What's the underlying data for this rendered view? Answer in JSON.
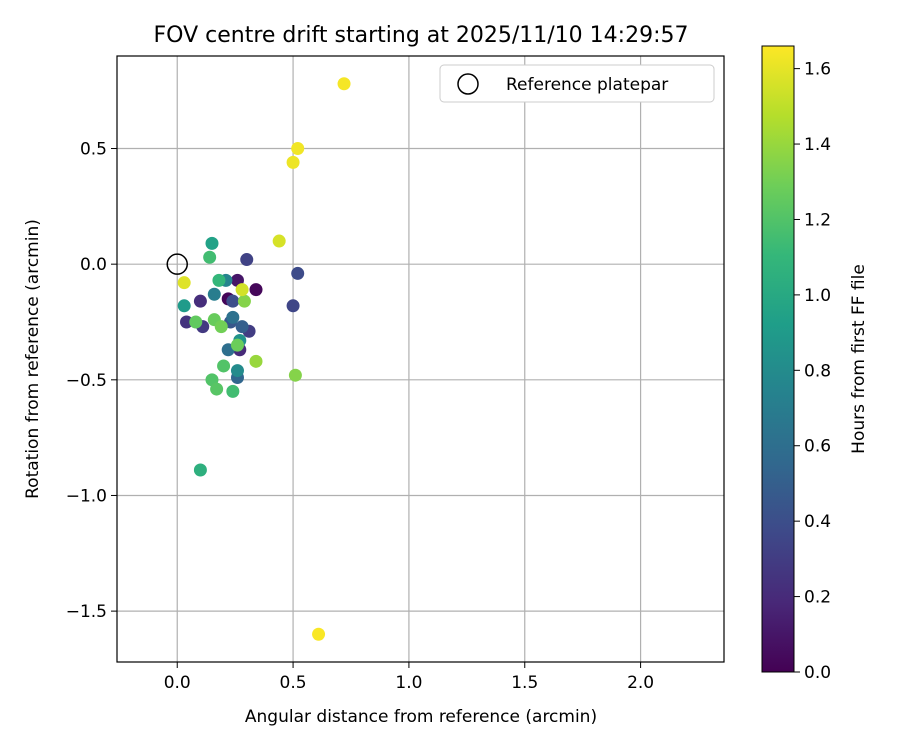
{
  "chart_data": {
    "type": "scatter",
    "title": "FOV centre drift starting at 2025/11/10 14:29:57",
    "xlabel": "Angular distance from reference (arcmin)",
    "ylabel": "Rotation from reference (arcmin)",
    "xlim": [
      -0.26,
      2.36
    ],
    "ylim": [
      -1.72,
      0.9
    ],
    "xticks": [
      0.0,
      0.5,
      1.0,
      1.5,
      2.0
    ],
    "xtick_labels": [
      "0.0",
      "0.5",
      "1.0",
      "1.5",
      "2.0"
    ],
    "yticks": [
      -1.5,
      -1.0,
      -0.5,
      0.0,
      0.5
    ],
    "ytick_labels": [
      "−1.5",
      "−1.0",
      "−0.5",
      "0.0",
      "0.5"
    ],
    "grid": true,
    "legend": {
      "position": "top-right",
      "entries": [
        "Reference platepar"
      ]
    },
    "reference_point": {
      "x": 0.0,
      "y": 0.0,
      "label": "Reference platepar"
    },
    "colorbar": {
      "label": "Hours from first FF file",
      "min": 0.0,
      "max": 1.66,
      "ticks": [
        0.0,
        0.2,
        0.4,
        0.6,
        0.8,
        1.0,
        1.2,
        1.4,
        1.6
      ],
      "tick_labels": [
        "0.0",
        "0.2",
        "0.4",
        "0.6",
        "0.8",
        "1.0",
        "1.2",
        "1.4",
        "1.6"
      ],
      "colormap": [
        "#440154",
        "#482878",
        "#3e4989",
        "#31688e",
        "#26828e",
        "#1f9e89",
        "#35b779",
        "#6ece58",
        "#b5de2b",
        "#fde725"
      ]
    },
    "points": [
      {
        "x": 0.22,
        "y": -0.15,
        "t": 0.02
      },
      {
        "x": 0.34,
        "y": -0.11,
        "t": 0.03
      },
      {
        "x": 0.26,
        "y": -0.07,
        "t": 0.1
      },
      {
        "x": 0.27,
        "y": -0.37,
        "t": 0.2
      },
      {
        "x": 0.1,
        "y": -0.16,
        "t": 0.22
      },
      {
        "x": 0.04,
        "y": -0.25,
        "t": 0.25
      },
      {
        "x": 0.11,
        "y": -0.27,
        "t": 0.28
      },
      {
        "x": 0.31,
        "y": -0.29,
        "t": 0.3
      },
      {
        "x": 0.3,
        "y": 0.02,
        "t": 0.33
      },
      {
        "x": 0.5,
        "y": -0.18,
        "t": 0.35
      },
      {
        "x": 0.52,
        "y": -0.04,
        "t": 0.38
      },
      {
        "x": 0.24,
        "y": -0.16,
        "t": 0.4
      },
      {
        "x": 0.23,
        "y": -0.25,
        "t": 0.45
      },
      {
        "x": 0.28,
        "y": -0.27,
        "t": 0.5
      },
      {
        "x": 0.26,
        "y": -0.49,
        "t": 0.55
      },
      {
        "x": 0.22,
        "y": -0.37,
        "t": 0.6
      },
      {
        "x": 0.24,
        "y": -0.23,
        "t": 0.62
      },
      {
        "x": 0.16,
        "y": -0.13,
        "t": 0.7
      },
      {
        "x": 0.21,
        "y": -0.07,
        "t": 0.75
      },
      {
        "x": 0.26,
        "y": -0.46,
        "t": 0.8
      },
      {
        "x": 0.27,
        "y": -0.33,
        "t": 0.85
      },
      {
        "x": 0.03,
        "y": -0.18,
        "t": 0.9
      },
      {
        "x": 0.15,
        "y": 0.09,
        "t": 0.95
      },
      {
        "x": 0.1,
        "y": -0.89,
        "t": 1.05
      },
      {
        "x": 0.18,
        "y": -0.07,
        "t": 1.1
      },
      {
        "x": 0.14,
        "y": 0.03,
        "t": 1.15
      },
      {
        "x": 0.24,
        "y": -0.55,
        "t": 1.15
      },
      {
        "x": 0.2,
        "y": -0.44,
        "t": 1.2
      },
      {
        "x": 0.15,
        "y": -0.5,
        "t": 1.2
      },
      {
        "x": 0.17,
        "y": -0.54,
        "t": 1.22
      },
      {
        "x": 0.08,
        "y": -0.25,
        "t": 1.25
      },
      {
        "x": 0.16,
        "y": -0.24,
        "t": 1.27
      },
      {
        "x": 0.26,
        "y": -0.35,
        "t": 1.28
      },
      {
        "x": 0.19,
        "y": -0.27,
        "t": 1.3
      },
      {
        "x": 0.29,
        "y": -0.16,
        "t": 1.35
      },
      {
        "x": 0.51,
        "y": -0.48,
        "t": 1.35
      },
      {
        "x": 0.34,
        "y": -0.42,
        "t": 1.4
      },
      {
        "x": 0.28,
        "y": -0.11,
        "t": 1.55
      },
      {
        "x": 0.44,
        "y": 0.1,
        "t": 1.56
      },
      {
        "x": 0.03,
        "y": -0.08,
        "t": 1.58
      },
      {
        "x": 0.5,
        "y": 0.44,
        "t": 1.62
      },
      {
        "x": 0.52,
        "y": 0.5,
        "t": 1.63
      },
      {
        "x": 0.72,
        "y": 0.78,
        "t": 1.64
      },
      {
        "x": 0.61,
        "y": -1.6,
        "t": 1.65
      }
    ]
  }
}
